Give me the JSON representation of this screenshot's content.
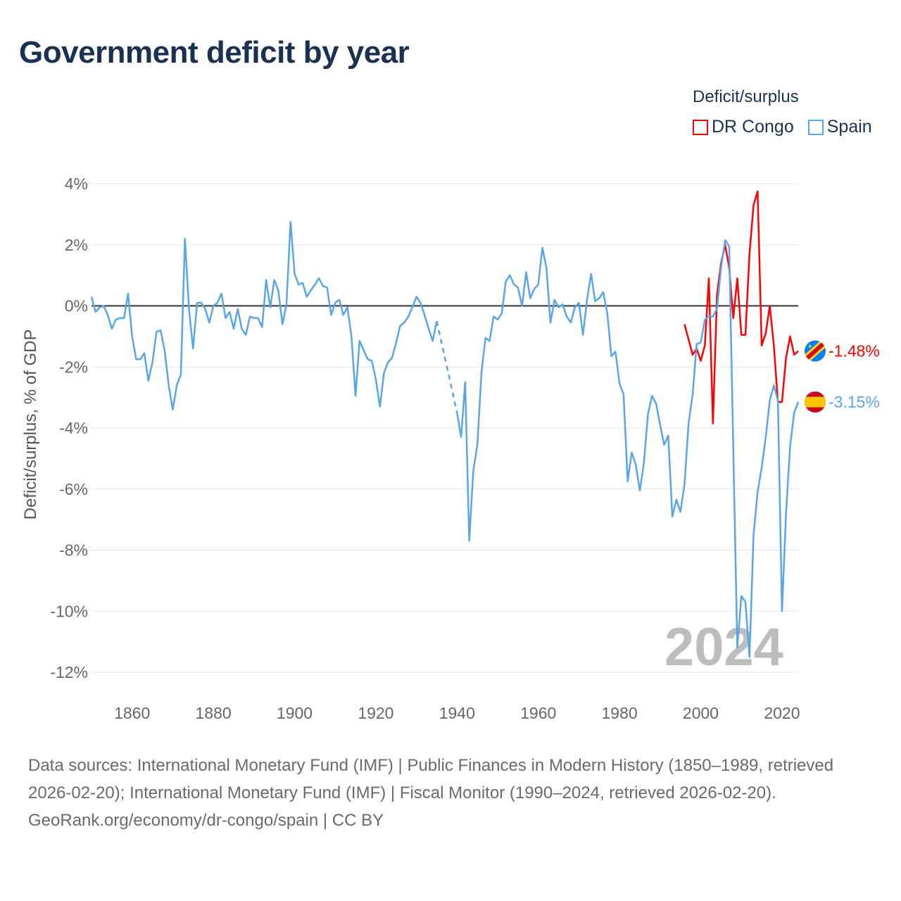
{
  "title": "Government deficit by year",
  "legend": {
    "title": "Deficit/surplus",
    "items": [
      {
        "name": "DR Congo",
        "color": "#ff0000"
      },
      {
        "name": "Spain",
        "color": "#5aa5ea"
      }
    ]
  },
  "year_watermark": "2024",
  "footer": {
    "sources": "Data sources: International Monetary Fund (IMF) | Public Finances in Modern History (1850–1989, retrieved 2026-02-20); International Monetary Fund (IMF) | Fiscal Monitor (1990–2024, retrieved 2026-02-20).",
    "credit": "GeoRank.org/economy/dr-congo/spain | CC BY"
  },
  "chart_data": {
    "type": "line",
    "title": "Government deficit by year",
    "xlabel": "",
    "ylabel": "Deficit/surplus, % of GDP",
    "xlim": [
      1850,
      2024
    ],
    "ylim": [
      -12,
      4
    ],
    "x_ticks": [
      1860,
      1880,
      1900,
      1920,
      1940,
      1960,
      1980,
      2000,
      2020
    ],
    "y_ticks": [
      4,
      2,
      0,
      -2,
      -4,
      -6,
      -8,
      -10,
      -12
    ],
    "y_tick_labels": [
      "4%",
      "2%",
      "0%",
      "-2%",
      "-4%",
      "-6%",
      "-8%",
      "-10%",
      "-12%"
    ],
    "grid": true,
    "legend_position": "top-right",
    "series": [
      {
        "name": "Spain",
        "color": "#5aa5ea",
        "start_year": 1850,
        "end_label": "-3.15%",
        "values": [
          0.3,
          -0.2,
          -0.05,
          0.0,
          -0.3,
          -0.75,
          -0.45,
          -0.4,
          -0.4,
          0.4,
          -1.0,
          -1.75,
          -1.75,
          -1.55,
          -2.45,
          -1.85,
          -0.85,
          -0.8,
          -1.45,
          -2.6,
          -3.4,
          -2.6,
          -2.25,
          2.2,
          -0.1,
          -1.4,
          0.1,
          0.1,
          -0.1,
          -0.55,
          0.0,
          0.1,
          0.4,
          -0.4,
          -0.2,
          -0.75,
          -0.1,
          -0.75,
          -0.95,
          -0.35,
          -0.4,
          -0.4,
          -0.7,
          0.85,
          -0.05,
          0.85,
          0.5,
          -0.6,
          0.05,
          2.75,
          1.05,
          0.7,
          0.75,
          0.3,
          0.5,
          0.7,
          0.9,
          0.65,
          0.6,
          -0.3,
          0.1,
          0.2,
          -0.3,
          -0.05,
          -1.0,
          -2.95,
          -1.15,
          -1.45,
          -1.75,
          -1.8,
          -2.4,
          -3.3,
          -2.2,
          -1.85,
          -1.7,
          -1.2,
          -0.65,
          -0.55,
          -0.35,
          -0.05,
          0.3,
          0.1,
          -0.3,
          -0.75,
          -1.15,
          -0.5,
          null,
          null,
          null,
          null,
          -3.5,
          -4.3,
          -2.5,
          -7.7,
          -5.4,
          -4.55,
          -2.2,
          -1.05,
          -1.15,
          -0.35,
          -0.45,
          -0.25,
          0.8,
          1.0,
          0.7,
          0.6,
          0.0,
          1.1,
          0.25,
          0.55,
          0.7,
          1.9,
          1.25,
          -0.55,
          0.2,
          -0.05,
          0.05,
          -0.35,
          -0.55,
          -0.05,
          0.1,
          -0.95,
          0.2,
          1.05,
          0.15,
          0.25,
          0.45,
          -0.25,
          -1.65,
          -1.5,
          -2.55,
          -2.9,
          -5.75,
          -4.8,
          -5.2,
          -6.05,
          -5.15,
          -3.55,
          -2.95,
          -3.2,
          -3.9,
          -4.55,
          -4.25,
          -6.9,
          -6.35,
          -6.75,
          -5.85,
          -3.85,
          -2.9,
          -1.25,
          -1.2,
          -0.45,
          -0.35,
          -0.35,
          -0.1,
          1.25,
          2.15,
          1.95,
          -4.6,
          -11.2,
          -9.5,
          -9.7,
          -11.5,
          -7.5,
          -6.1,
          -5.3,
          -4.3,
          -3.1,
          -2.6,
          -3.1,
          -10.0,
          -6.8,
          -4.6,
          -3.5,
          -3.15
        ]
      },
      {
        "name": "DR Congo",
        "color": "#ff0000",
        "start_year": 1996,
        "end_label": "-1.48%",
        "values": [
          -0.6,
          -1.1,
          -1.6,
          -1.4,
          -1.8,
          -1.3,
          0.9,
          -3.85,
          0.35,
          1.4,
          2.0,
          1.25,
          -0.4,
          0.9,
          -0.95,
          -0.95,
          1.7,
          3.3,
          3.75,
          -1.3,
          -0.9,
          0.0,
          -1.3,
          -3.15,
          -3.15,
          -1.7,
          -1.0,
          -1.6,
          -1.48
        ]
      }
    ]
  }
}
